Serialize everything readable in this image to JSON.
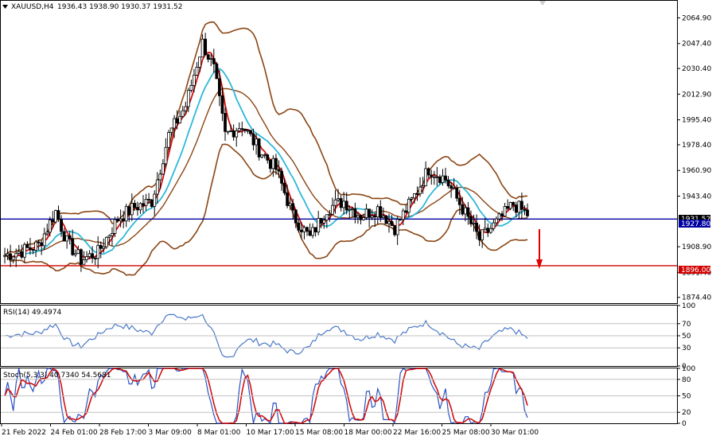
{
  "header": {
    "symbol_timeframe": "XAUUSD,H4",
    "ohlc": "1936.43 1938.90 1930.37 1931.52",
    "collapse_icon": "triangle-down-icon"
  },
  "colors": {
    "background": "#ffffff",
    "bull_candle": "#000000",
    "bear_candle": "#000000",
    "bollinger": "#8b4513",
    "ma_fast": "#d01010",
    "ma_slow": "#2eb8d8",
    "support_line": "#d00000",
    "current_line": "#0000a0",
    "rsi_line": "#4a78c8",
    "stoch_main": "#2850c0",
    "stoch_signal": "#d01010",
    "arrow": "#e00000",
    "grid": "#c0c0c0"
  },
  "price_axis": {
    "ticks": [
      "2064.90",
      "2047.40",
      "2030.40",
      "2012.90",
      "1995.40",
      "1978.40",
      "1960.90",
      "1943.40",
      "1908.90",
      "1891.40",
      "1874.40"
    ],
    "tick_values": [
      2064.9,
      2047.4,
      2030.4,
      2012.9,
      1995.4,
      1978.4,
      1960.9,
      1943.4,
      1908.9,
      1891.4,
      1874.4
    ],
    "current_price_label": "1931.52",
    "level_label": "1927.80",
    "support_label": "1896.00",
    "range": [
      1871,
      2076
    ]
  },
  "time_axis": {
    "labels": [
      "21 Feb 2022",
      "24 Feb 01:00",
      "28 Feb 17:00",
      "3 Mar 09:00",
      "8 Mar 01:00",
      "10 Mar 17:00",
      "15 Mar 08:00",
      "18 Mar 00:00",
      "22 Mar 16:00",
      "25 Mar 08:00",
      "30 Mar 01:00"
    ]
  },
  "rsi": {
    "label": "RSI(14) 49.4974",
    "ticks": [
      "70",
      "50",
      "30",
      "0",
      "100"
    ],
    "tick_values": [
      70,
      50,
      30,
      0,
      100
    ]
  },
  "stoch": {
    "label": "Stoch(5,3,3) 40.7340 54.5681",
    "ticks": [
      "80",
      "50",
      "20",
      "0",
      "100"
    ],
    "tick_values": [
      80,
      50,
      20,
      0,
      100
    ]
  },
  "chart_data": {
    "type": "line",
    "title": "XAUUSD,H4",
    "price_key_points": [
      {
        "x": 0,
        "price": 1903
      },
      {
        "x": 6,
        "price": 1906
      },
      {
        "x": 12,
        "price": 1910
      },
      {
        "x": 18,
        "price": 1933
      },
      {
        "x": 22,
        "price": 1912
      },
      {
        "x": 27,
        "price": 1900
      },
      {
        "x": 33,
        "price": 1905
      },
      {
        "x": 40,
        "price": 1928
      },
      {
        "x": 46,
        "price": 1936
      },
      {
        "x": 52,
        "price": 1940
      },
      {
        "x": 58,
        "price": 1985
      },
      {
        "x": 64,
        "price": 2005
      },
      {
        "x": 70,
        "price": 2048
      },
      {
        "x": 74,
        "price": 2030
      },
      {
        "x": 78,
        "price": 1985
      },
      {
        "x": 84,
        "price": 1992
      },
      {
        "x": 90,
        "price": 1975
      },
      {
        "x": 96,
        "price": 1962
      },
      {
        "x": 102,
        "price": 1930
      },
      {
        "x": 108,
        "price": 1915
      },
      {
        "x": 114,
        "price": 1935
      },
      {
        "x": 120,
        "price": 1940
      },
      {
        "x": 126,
        "price": 1930
      },
      {
        "x": 132,
        "price": 1935
      },
      {
        "x": 138,
        "price": 1922
      },
      {
        "x": 144,
        "price": 1940
      },
      {
        "x": 150,
        "price": 1962
      },
      {
        "x": 156,
        "price": 1955
      },
      {
        "x": 162,
        "price": 1935
      },
      {
        "x": 168,
        "price": 1914
      },
      {
        "x": 174,
        "price": 1925
      },
      {
        "x": 180,
        "price": 1938
      },
      {
        "x": 185,
        "price": 1931
      }
    ],
    "series": [
      {
        "values": [
          1903,
          1906,
          1910,
          1933,
          1912,
          1900,
          1905,
          1928,
          1936,
          1940,
          1985,
          2005,
          2048,
          2030,
          1985,
          1992,
          1975,
          1962,
          1930,
          1915,
          1935,
          1940,
          1930,
          1935,
          1922,
          1940,
          1962,
          1955,
          1935,
          1914,
          1925,
          1938,
          1931
        ]
      }
    ],
    "horizontal_lines": [
      {
        "label": "1927.80",
        "value": 1927.8
      },
      {
        "label": "1896.00",
        "value": 1896.0
      }
    ],
    "ylim": [
      1871,
      2076
    ],
    "grid": false
  }
}
